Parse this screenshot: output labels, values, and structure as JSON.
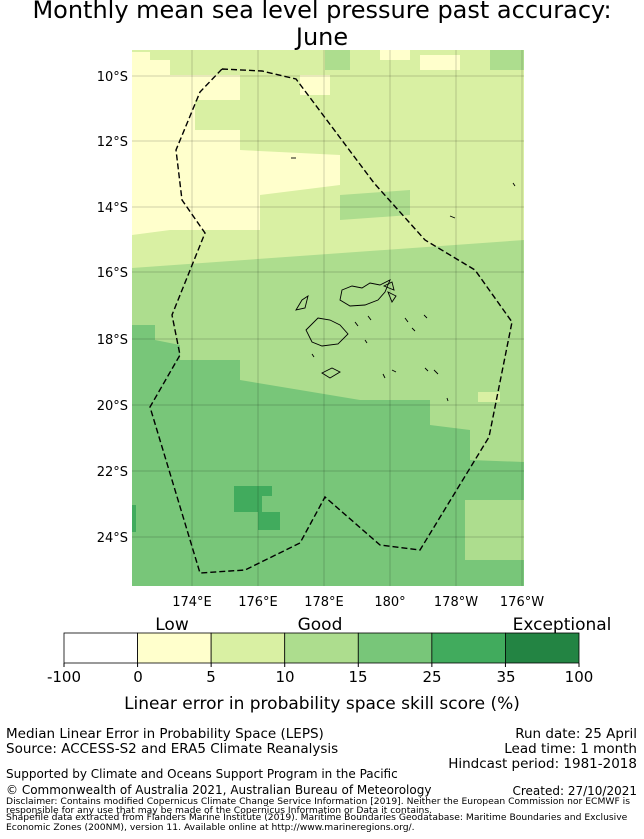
{
  "title": {
    "line1": "Monthly mean sea level pressure past accuracy:",
    "line2": "June"
  },
  "map": {
    "lat_labels": [
      "10°S",
      "12°S",
      "14°S",
      "16°S",
      "18°S",
      "20°S",
      "22°S",
      "24°S"
    ],
    "lon_labels": [
      "174°E",
      "176°E",
      "178°E",
      "180°",
      "178°W",
      "176°W"
    ]
  },
  "legend": {
    "categories": [
      "Low",
      "Good",
      "Exceptional"
    ],
    "ticks": [
      "-100",
      "0",
      "5",
      "10",
      "15",
      "25",
      "35",
      "100"
    ],
    "colors": [
      "#ffffff",
      "#ffffcc",
      "#d9f0a3",
      "#addd8e",
      "#78c679",
      "#41ab5d",
      "#238443"
    ],
    "label": "Linear error in probability space skill score (%)"
  },
  "info": {
    "line1": "Median Linear Error in Probability Space (LEPS)",
    "line2": "Source: ACCESS-S2 and ERA5 Climate Reanalysis",
    "run_date": "Run date: 25 April",
    "lead_time": "Lead time: 1 month",
    "hindcast": "Hindcast period: 1981-2018",
    "supported": "Supported by Climate and Oceans Support Program in the Pacific",
    "copyright": "© Commonwealth of Australia 2021, Australian Bureau of Meteorology",
    "created": "Created: 27/10/2021",
    "disclaimer1": "Disclaimer: Contains modified Copernicus Climate Change Service Information [2019]. Neither the European Commission nor ECMWF is",
    "disclaimer2": "responsible for any use that may be made of the Copernicus Information or Data it contains.",
    "shapefile1": "Shapefile data extracted from Flanders Marine Institute (2019). Maritime Boundaries Geodatabase: Maritime Boundaries and Exclusive",
    "shapefile2": "Economic Zones (200NM), version 11. Available online at http://www.marineregions.org/."
  }
}
